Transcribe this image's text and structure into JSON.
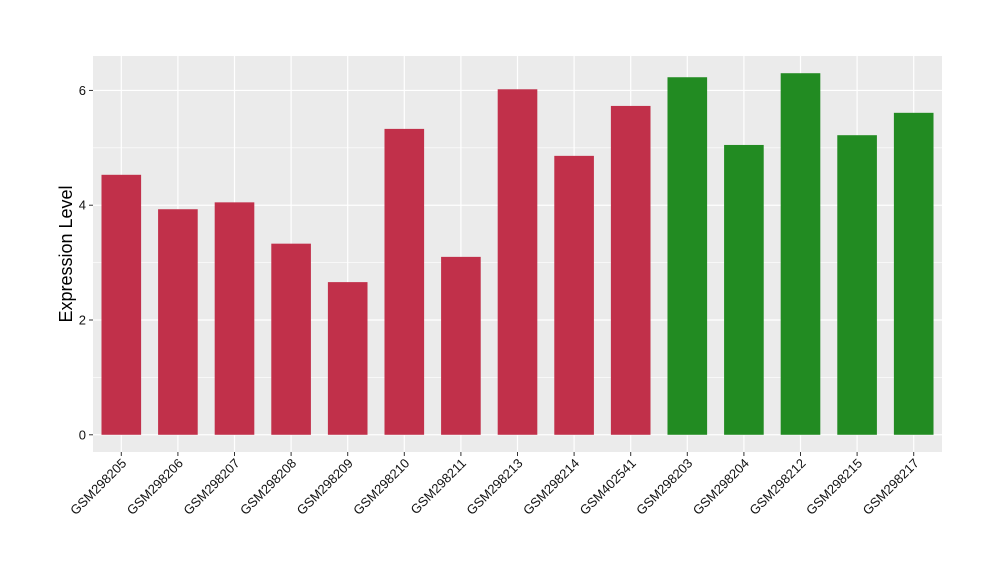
{
  "chart_data": {
    "type": "bar",
    "title": "",
    "xlabel": "",
    "ylabel": "Expression Level",
    "categories": [
      "GSM298205",
      "GSM298206",
      "GSM298207",
      "GSM298208",
      "GSM298209",
      "GSM298210",
      "GSM298211",
      "GSM298213",
      "GSM298214",
      "GSM402541",
      "GSM298203",
      "GSM298204",
      "GSM298212",
      "GSM298215",
      "GSM298217"
    ],
    "values": [
      4.53,
      3.93,
      4.05,
      3.33,
      2.66,
      5.33,
      3.1,
      6.02,
      4.86,
      5.73,
      6.23,
      5.05,
      6.3,
      5.22,
      5.61
    ],
    "bar_colors": [
      "#C1304A",
      "#C1304A",
      "#C1304A",
      "#C1304A",
      "#C1304A",
      "#C1304A",
      "#C1304A",
      "#C1304A",
      "#C1304A",
      "#C1304A",
      "#228B22",
      "#228B22",
      "#228B22",
      "#228B22",
      "#228B22"
    ],
    "yticks": [
      0,
      2,
      4,
      6
    ],
    "ytick_labels": [
      "0",
      "2",
      "4",
      "6"
    ],
    "ylim": [
      -0.3,
      6.6
    ],
    "grid": true,
    "legend": "none",
    "panel_background": "#EBEBEB",
    "grid_color": "#FFFFFF"
  }
}
